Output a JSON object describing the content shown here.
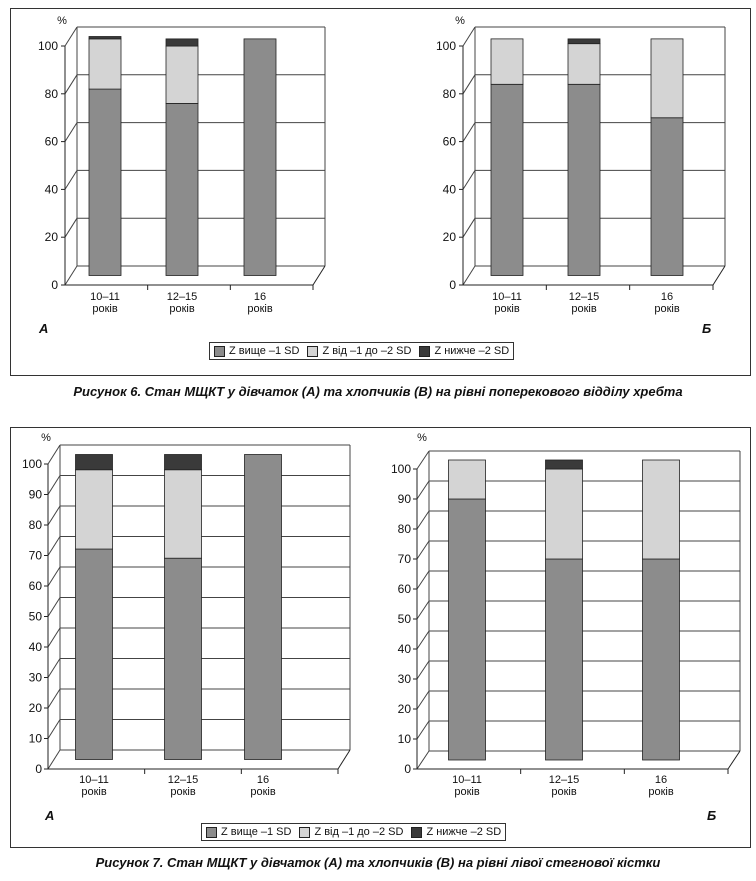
{
  "colors": {
    "above": "#8c8c8c",
    "between": "#d4d4d4",
    "below": "#3a3a3a",
    "axis": "#222222",
    "grid": "#444444"
  },
  "legend": [
    {
      "key": "above",
      "label": "Z вище –1 SD"
    },
    {
      "key": "between",
      "label": "Z від –1 до –2 SD"
    },
    {
      "key": "below",
      "label": "Z нижче –2 SD"
    }
  ],
  "figures": {
    "fig6": {
      "caption": "Рисунок 6. Стан МЩКТ у дівчаток (А) та хлопчиків (В) на рівні поперекового відділу хребта"
    },
    "fig7": {
      "caption": "Рисунок 7. Стан МЩКТ у дівчаток (А) та хлопчиків (В) на рівні лівої стегнової кістки"
    }
  },
  "chart_data": [
    {
      "id": "fig6A",
      "type": "bar",
      "stacked": true,
      "panel_label": "А",
      "ylabel": "%",
      "ylim": [
        0,
        100
      ],
      "yticks": [
        0,
        20,
        40,
        60,
        80,
        100
      ],
      "grid": true,
      "categories": [
        [
          "10–11",
          "років"
        ],
        [
          "12–15",
          "років"
        ],
        [
          "16",
          "років"
        ]
      ],
      "series": [
        {
          "key": "above",
          "values": [
            78,
            72,
            99
          ]
        },
        {
          "key": "between",
          "values": [
            21,
            24,
            0
          ]
        },
        {
          "key": "below",
          "values": [
            1,
            3,
            0
          ]
        }
      ]
    },
    {
      "id": "fig6B",
      "type": "bar",
      "stacked": true,
      "panel_label": "Б",
      "ylabel": "%",
      "ylim": [
        0,
        100
      ],
      "yticks": [
        0,
        20,
        40,
        60,
        80,
        100
      ],
      "grid": true,
      "categories": [
        [
          "10–11",
          "років"
        ],
        [
          "12–15",
          "років"
        ],
        [
          "16",
          "років"
        ]
      ],
      "series": [
        {
          "key": "above",
          "values": [
            80,
            80,
            66
          ]
        },
        {
          "key": "between",
          "values": [
            19,
            17,
            33
          ]
        },
        {
          "key": "below",
          "values": [
            0,
            2,
            0
          ]
        }
      ]
    },
    {
      "id": "fig7A",
      "type": "bar",
      "stacked": true,
      "panel_label": "А",
      "ylabel": "%",
      "ylim": [
        0,
        100
      ],
      "yticks": [
        0,
        10,
        20,
        30,
        40,
        50,
        60,
        70,
        80,
        90,
        100
      ],
      "grid": true,
      "categories": [
        [
          "10–11",
          "років"
        ],
        [
          "12–15",
          "років"
        ],
        [
          "16",
          "років"
        ]
      ],
      "series": [
        {
          "key": "above",
          "values": [
            69,
            66,
            100
          ]
        },
        {
          "key": "between",
          "values": [
            26,
            29,
            0
          ]
        },
        {
          "key": "below",
          "values": [
            5,
            5,
            0
          ]
        }
      ]
    },
    {
      "id": "fig7B",
      "type": "bar",
      "stacked": true,
      "panel_label": "Б",
      "ylabel": "%",
      "ylim": [
        0,
        100
      ],
      "yticks": [
        0,
        10,
        20,
        30,
        40,
        50,
        60,
        70,
        80,
        90,
        100
      ],
      "grid": true,
      "categories": [
        [
          "10–11",
          "років"
        ],
        [
          "12–15",
          "років"
        ],
        [
          "16",
          "років"
        ]
      ],
      "series": [
        {
          "key": "above",
          "values": [
            87,
            67,
            67
          ]
        },
        {
          "key": "between",
          "values": [
            13,
            30,
            33
          ]
        },
        {
          "key": "below",
          "values": [
            0,
            3,
            0
          ]
        }
      ]
    }
  ]
}
